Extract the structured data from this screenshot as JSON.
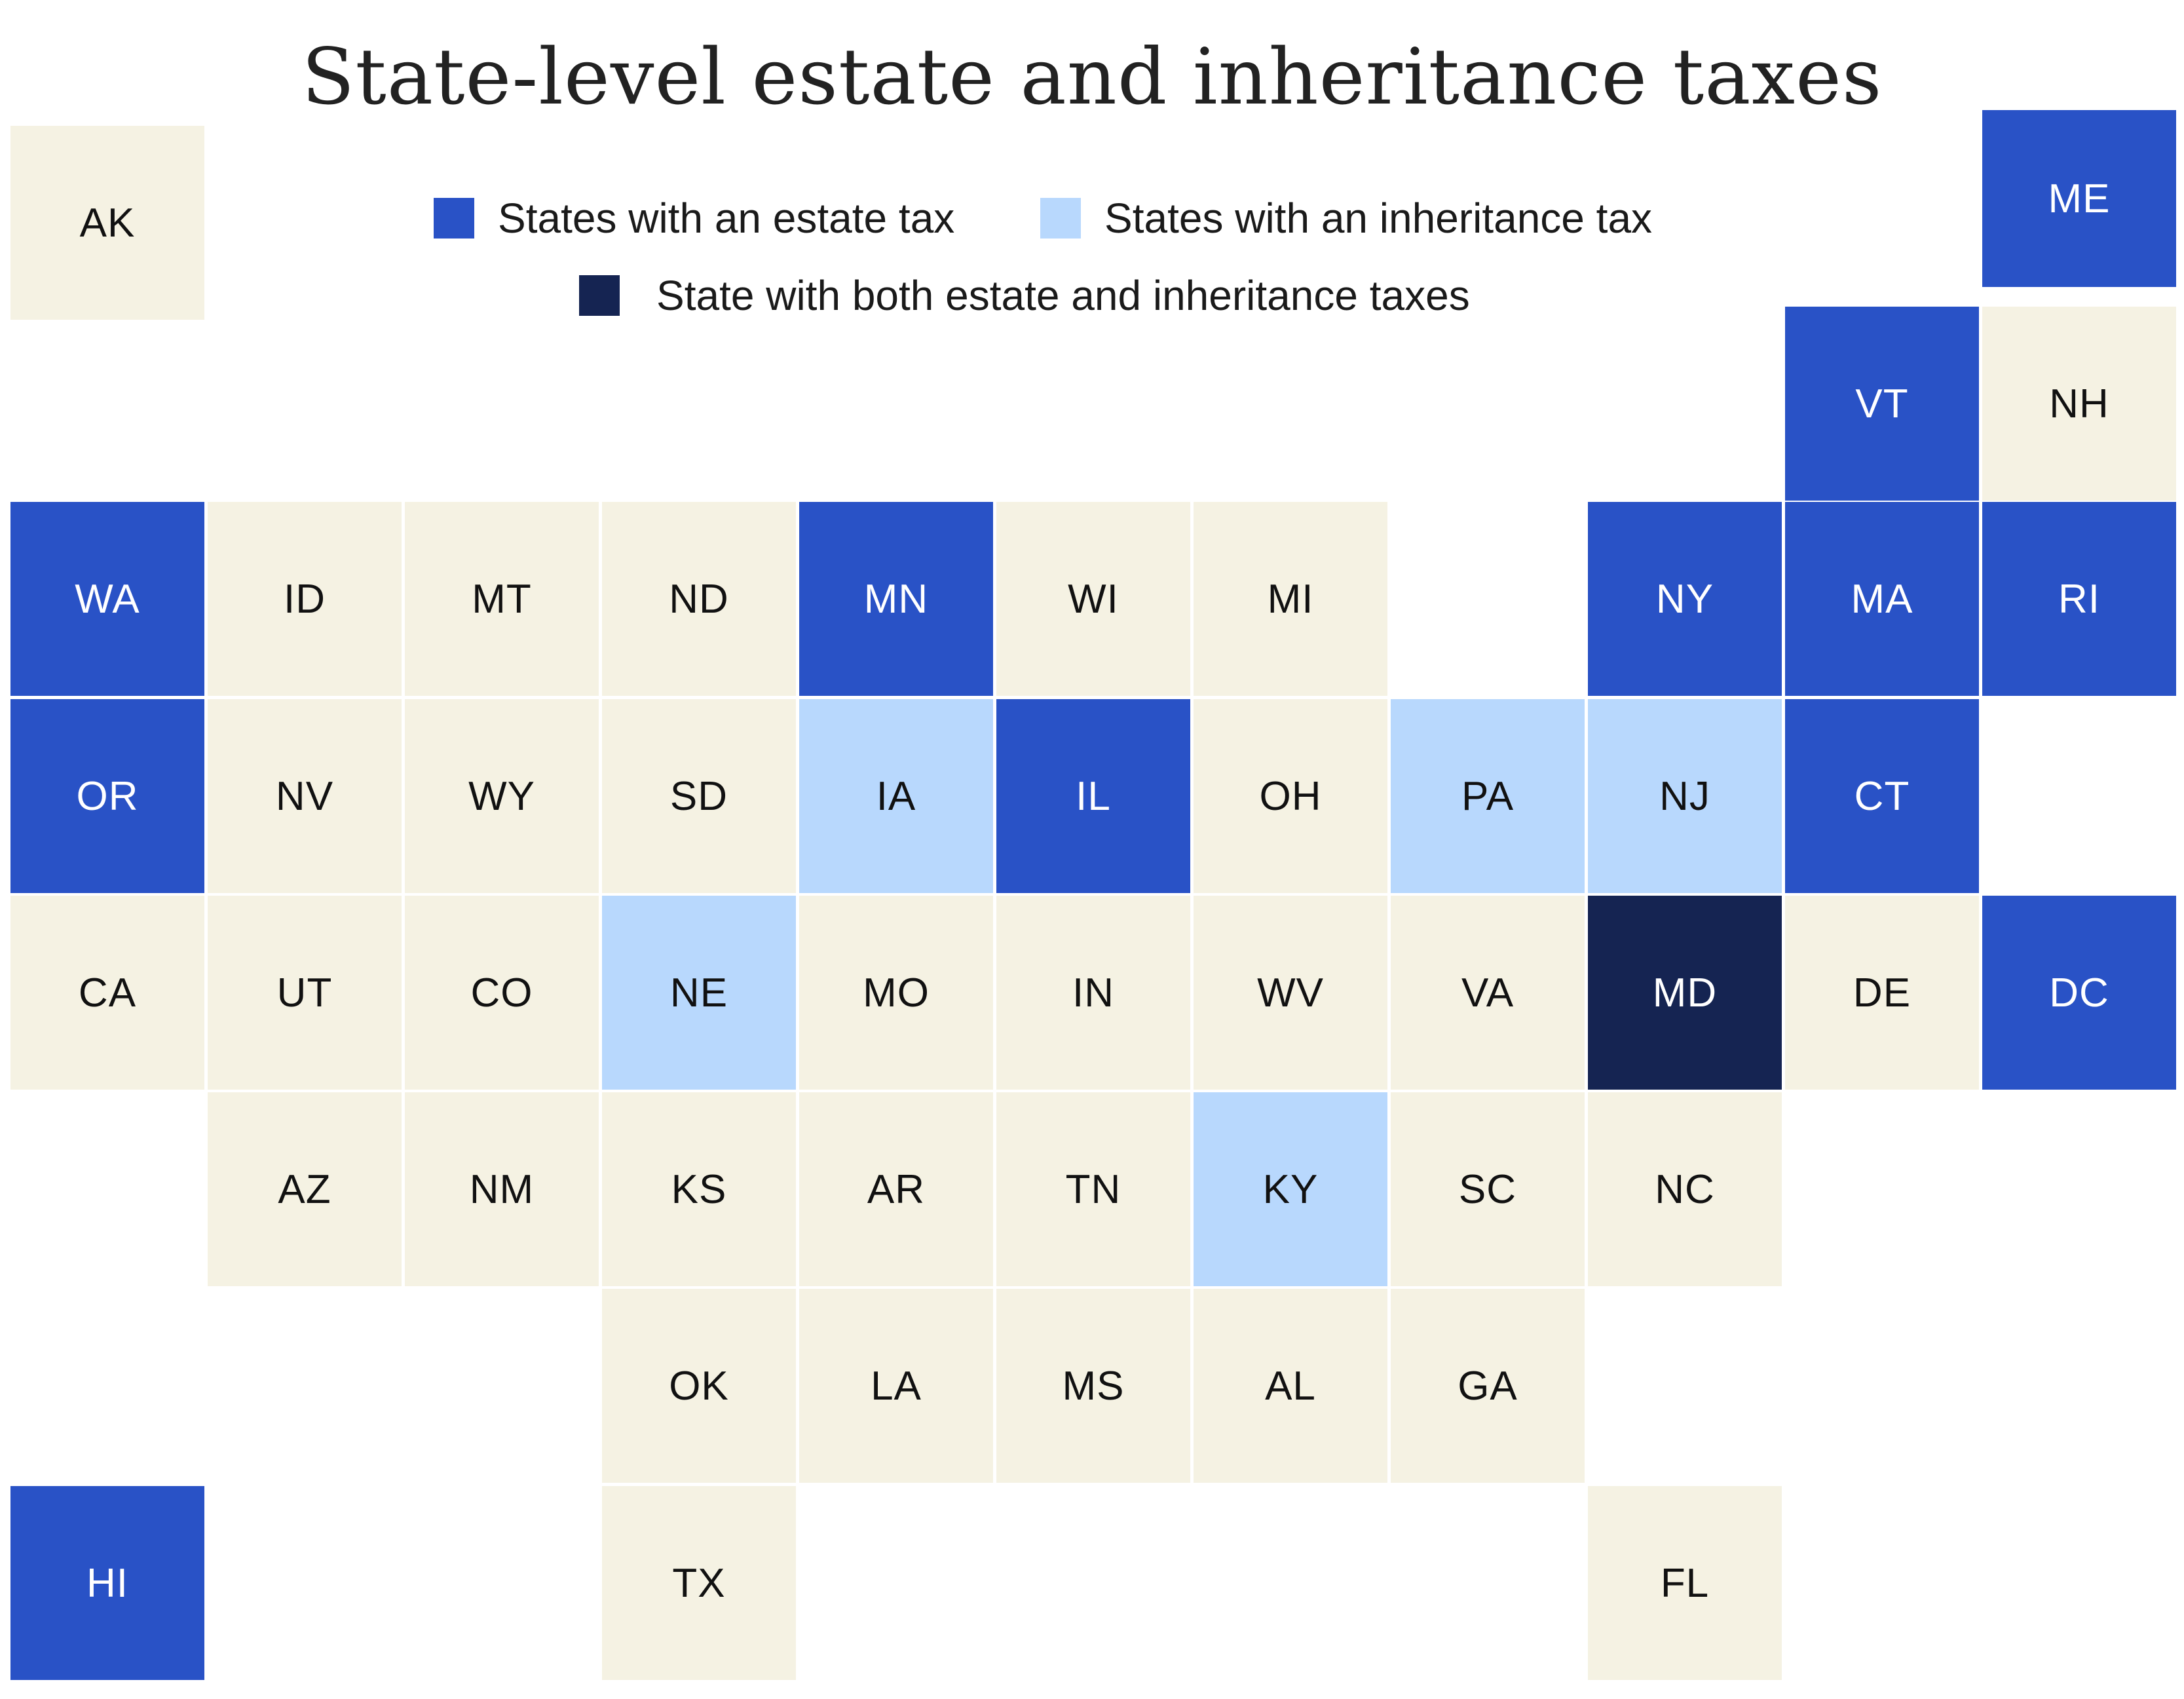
{
  "title": "State-level estate and inheritance taxes",
  "colors": {
    "estate": "#2952c6",
    "inheritance": "#b8d8fd",
    "both": "#152452",
    "none": "#f5f2e3",
    "text_dark": "#111111",
    "text_light": "#ffffff"
  },
  "legend": {
    "estate_label": "States with an estate tax",
    "inheritance_label": "States with an inheritance tax",
    "both_label": "State with both estate and inheritance taxes"
  },
  "states": [
    {
      "code": "AK",
      "row": 0,
      "col": 0,
      "tax": "none"
    },
    {
      "code": "ME",
      "row": 0,
      "col": 10,
      "tax": "estate"
    },
    {
      "code": "VT",
      "row": 1,
      "col": 9,
      "tax": "estate"
    },
    {
      "code": "NH",
      "row": 1,
      "col": 10,
      "tax": "none"
    },
    {
      "code": "WA",
      "row": 2,
      "col": 0,
      "tax": "estate"
    },
    {
      "code": "ID",
      "row": 2,
      "col": 1,
      "tax": "none"
    },
    {
      "code": "MT",
      "row": 2,
      "col": 2,
      "tax": "none"
    },
    {
      "code": "ND",
      "row": 2,
      "col": 3,
      "tax": "none"
    },
    {
      "code": "MN",
      "row": 2,
      "col": 4,
      "tax": "estate"
    },
    {
      "code": "WI",
      "row": 2,
      "col": 5,
      "tax": "none"
    },
    {
      "code": "MI",
      "row": 2,
      "col": 6,
      "tax": "none"
    },
    {
      "code": "NY",
      "row": 2,
      "col": 8,
      "tax": "estate"
    },
    {
      "code": "MA",
      "row": 2,
      "col": 9,
      "tax": "estate"
    },
    {
      "code": "RI",
      "row": 2,
      "col": 10,
      "tax": "estate"
    },
    {
      "code": "OR",
      "row": 3,
      "col": 0,
      "tax": "estate"
    },
    {
      "code": "NV",
      "row": 3,
      "col": 1,
      "tax": "none"
    },
    {
      "code": "WY",
      "row": 3,
      "col": 2,
      "tax": "none"
    },
    {
      "code": "SD",
      "row": 3,
      "col": 3,
      "tax": "none"
    },
    {
      "code": "IA",
      "row": 3,
      "col": 4,
      "tax": "inheritance"
    },
    {
      "code": "IL",
      "row": 3,
      "col": 5,
      "tax": "estate"
    },
    {
      "code": "OH",
      "row": 3,
      "col": 6,
      "tax": "none"
    },
    {
      "code": "PA",
      "row": 3,
      "col": 7,
      "tax": "inheritance"
    },
    {
      "code": "NJ",
      "row": 3,
      "col": 8,
      "tax": "inheritance"
    },
    {
      "code": "CT",
      "row": 3,
      "col": 9,
      "tax": "estate"
    },
    {
      "code": "CA",
      "row": 4,
      "col": 0,
      "tax": "none"
    },
    {
      "code": "UT",
      "row": 4,
      "col": 1,
      "tax": "none"
    },
    {
      "code": "CO",
      "row": 4,
      "col": 2,
      "tax": "none"
    },
    {
      "code": "NE",
      "row": 4,
      "col": 3,
      "tax": "inheritance"
    },
    {
      "code": "MO",
      "row": 4,
      "col": 4,
      "tax": "none"
    },
    {
      "code": "IN",
      "row": 4,
      "col": 5,
      "tax": "none"
    },
    {
      "code": "WV",
      "row": 4,
      "col": 6,
      "tax": "none"
    },
    {
      "code": "VA",
      "row": 4,
      "col": 7,
      "tax": "none"
    },
    {
      "code": "MD",
      "row": 4,
      "col": 8,
      "tax": "both"
    },
    {
      "code": "DE",
      "row": 4,
      "col": 9,
      "tax": "none"
    },
    {
      "code": "DC",
      "row": 4,
      "col": 10,
      "tax": "estate"
    },
    {
      "code": "AZ",
      "row": 5,
      "col": 1,
      "tax": "none"
    },
    {
      "code": "NM",
      "row": 5,
      "col": 2,
      "tax": "none"
    },
    {
      "code": "KS",
      "row": 5,
      "col": 3,
      "tax": "none"
    },
    {
      "code": "AR",
      "row": 5,
      "col": 4,
      "tax": "none"
    },
    {
      "code": "TN",
      "row": 5,
      "col": 5,
      "tax": "none"
    },
    {
      "code": "KY",
      "row": 5,
      "col": 6,
      "tax": "inheritance"
    },
    {
      "code": "SC",
      "row": 5,
      "col": 7,
      "tax": "none"
    },
    {
      "code": "NC",
      "row": 5,
      "col": 8,
      "tax": "none"
    },
    {
      "code": "OK",
      "row": 6,
      "col": 3,
      "tax": "none"
    },
    {
      "code": "LA",
      "row": 6,
      "col": 4,
      "tax": "none"
    },
    {
      "code": "MS",
      "row": 6,
      "col": 5,
      "tax": "none"
    },
    {
      "code": "AL",
      "row": 6,
      "col": 6,
      "tax": "none"
    },
    {
      "code": "GA",
      "row": 6,
      "col": 7,
      "tax": "none"
    },
    {
      "code": "HI",
      "row": 7,
      "col": 0,
      "tax": "estate"
    },
    {
      "code": "TX",
      "row": 7,
      "col": 3,
      "tax": "none"
    },
    {
      "code": "FL",
      "row": 7,
      "col": 8,
      "tax": "none"
    }
  ]
}
